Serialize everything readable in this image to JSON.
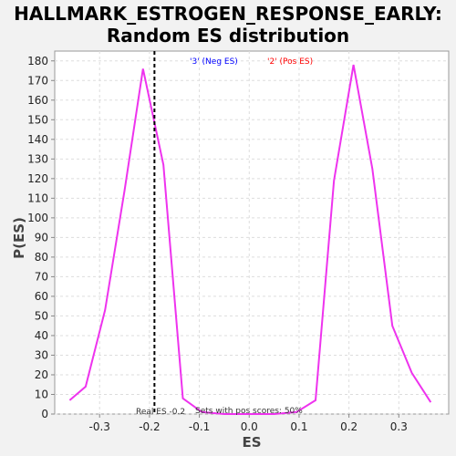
{
  "chart_data": {
    "type": "line",
    "title_line1": "HALLMARK_ESTROGEN_RESPONSE_EARLY:",
    "title_line2": "Random ES distribution",
    "xlabel": "ES",
    "ylabel": "P(ES)",
    "xlim": [
      -0.39,
      0.4
    ],
    "ylim": [
      0,
      185
    ],
    "xticks": [
      -0.3,
      -0.2,
      -0.1,
      0.0,
      0.1,
      0.2,
      0.3
    ],
    "xtick_labels": [
      "-0.3",
      "-0.2",
      "-0.1",
      "0.0",
      "0.1",
      "0.2",
      "0.3"
    ],
    "yticks": [
      0,
      10,
      20,
      30,
      40,
      50,
      60,
      70,
      80,
      90,
      100,
      110,
      120,
      130,
      140,
      150,
      160,
      170,
      180
    ],
    "grid": true,
    "series": [
      {
        "color": "#ee33ee",
        "points": [
          [
            -0.36,
            7
          ],
          [
            -0.328,
            14
          ],
          [
            -0.289,
            53
          ],
          [
            -0.25,
            114
          ],
          [
            -0.213,
            176
          ],
          [
            -0.172,
            127
          ],
          [
            -0.133,
            8
          ],
          [
            -0.095,
            1
          ],
          [
            -0.05,
            0
          ],
          [
            0.0,
            0
          ],
          [
            0.05,
            0
          ],
          [
            0.095,
            1
          ],
          [
            0.133,
            7
          ],
          [
            0.17,
            119
          ],
          [
            0.209,
            178
          ],
          [
            0.247,
            125
          ],
          [
            0.287,
            45
          ],
          [
            0.326,
            21
          ],
          [
            0.364,
            6
          ]
        ]
      }
    ],
    "real_es_line": {
      "x": -0.19,
      "label": "Real ES -0.2"
    },
    "annotations": {
      "neg_label": "'3' (Neg ES)",
      "pos_label": "'2' (Pos ES)",
      "pos_scores": "Sets with pos scores: 50%"
    },
    "colors": {
      "neg": "#0000ff",
      "pos": "#ff0000",
      "line": "#ee33ee"
    }
  }
}
